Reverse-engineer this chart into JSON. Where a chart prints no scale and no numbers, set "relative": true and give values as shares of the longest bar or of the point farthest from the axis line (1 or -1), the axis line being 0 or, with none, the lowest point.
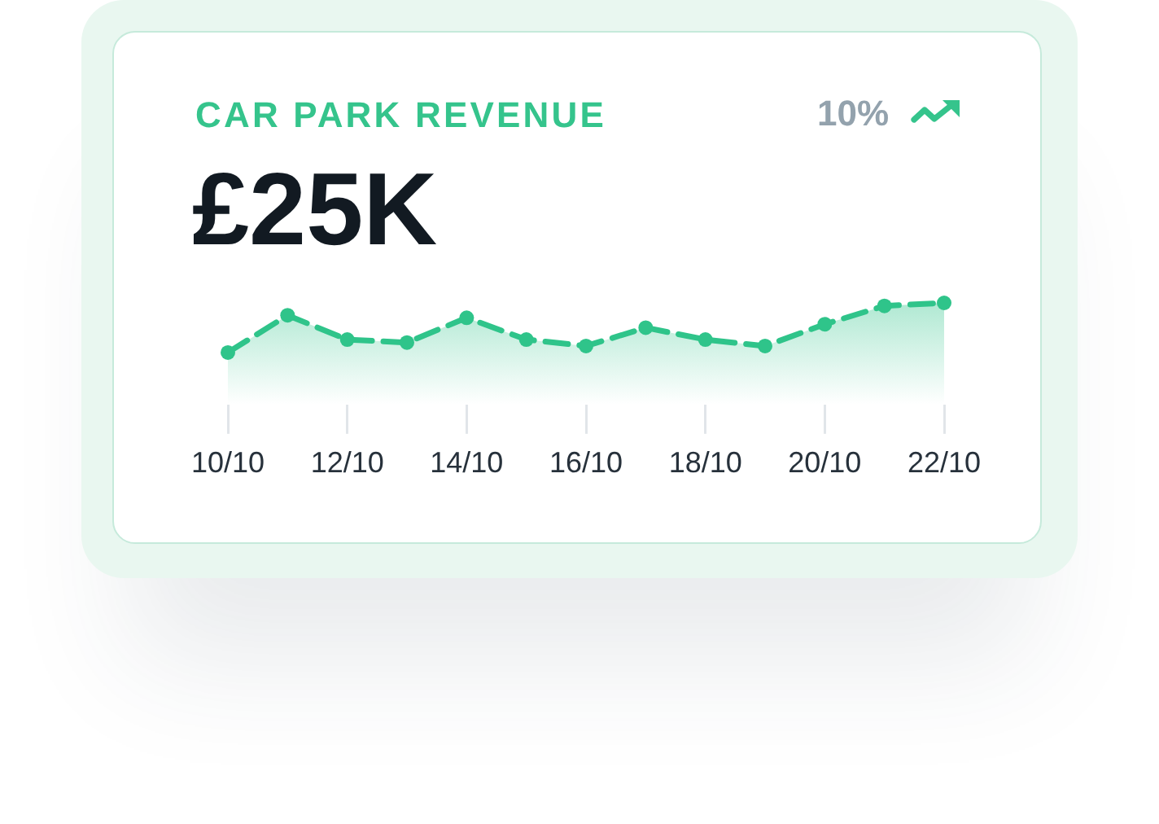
{
  "chart_data": {
    "type": "area",
    "title": "CAR PARK REVENUE",
    "subtitle": "£25K",
    "annotations": [
      "10%"
    ],
    "categories": [
      "10/10",
      null,
      "12/10",
      null,
      "14/10",
      null,
      "16/10",
      null,
      "18/10",
      null,
      "20/10",
      null,
      "22/10"
    ],
    "values": [
      0,
      0.75,
      0.26,
      0.2,
      0.7,
      0.26,
      0.13,
      0.5,
      0.26,
      0.13,
      0.57,
      0.94,
      1
    ],
    "color": "#2fc48a",
    "relative": true,
    "marker": "circle",
    "line_style": "dashed"
  }
}
